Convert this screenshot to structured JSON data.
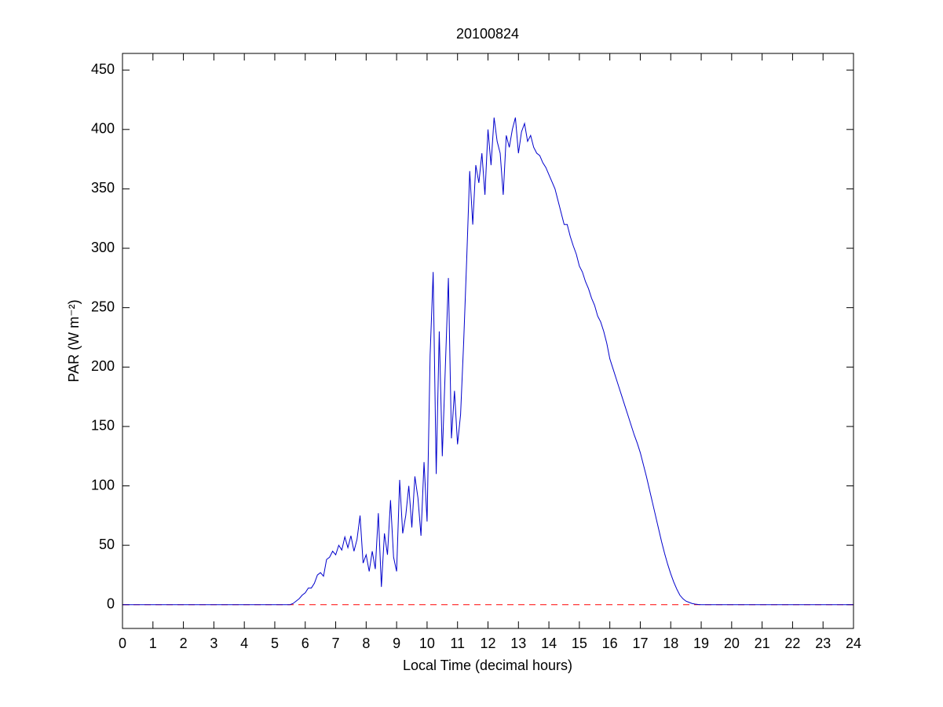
{
  "chart_data": {
    "type": "line",
    "title": "20100824",
    "xlabel": "Local Time (decimal hours)",
    "ylabel": "PAR (W m⁻²)",
    "x": [
      0,
      5.5,
      5.6,
      5.7,
      5.8,
      5.9,
      6.0,
      6.1,
      6.2,
      6.3,
      6.4,
      6.5,
      6.6,
      6.7,
      6.8,
      6.9,
      7.0,
      7.1,
      7.2,
      7.3,
      7.4,
      7.5,
      7.6,
      7.7,
      7.8,
      7.9,
      8.0,
      8.1,
      8.2,
      8.3,
      8.4,
      8.5,
      8.6,
      8.7,
      8.8,
      8.9,
      9.0,
      9.1,
      9.2,
      9.3,
      9.4,
      9.5,
      9.6,
      9.7,
      9.8,
      9.9,
      10.0,
      10.1,
      10.2,
      10.3,
      10.4,
      10.5,
      10.6,
      10.7,
      10.8,
      10.9,
      11.0,
      11.1,
      11.2,
      11.3,
      11.4,
      11.5,
      11.6,
      11.7,
      11.8,
      11.9,
      12.0,
      12.1,
      12.2,
      12.3,
      12.4,
      12.5,
      12.6,
      12.7,
      12.8,
      12.9,
      13.0,
      13.1,
      13.2,
      13.3,
      13.4,
      13.5,
      13.6,
      13.7,
      13.8,
      13.9,
      14.0,
      14.1,
      14.2,
      14.3,
      14.4,
      14.5,
      14.6,
      14.7,
      14.8,
      14.9,
      15.0,
      15.1,
      15.2,
      15.3,
      15.4,
      15.5,
      15.6,
      15.7,
      15.8,
      15.9,
      16.0,
      16.1,
      16.2,
      16.3,
      16.4,
      16.5,
      16.6,
      16.7,
      16.8,
      16.9,
      17.0,
      17.1,
      17.2,
      17.3,
      17.4,
      17.5,
      17.6,
      17.7,
      17.8,
      17.9,
      18.0,
      18.1,
      18.2,
      18.3,
      18.4,
      18.5,
      18.6,
      18.7,
      18.8,
      18.9,
      19.0,
      19.2,
      24
    ],
    "series": [
      {
        "name": "PAR",
        "color": "#0000cc",
        "values": [
          0,
          0,
          1,
          3,
          5,
          8,
          10,
          14,
          14,
          18,
          25,
          27,
          24,
          38,
          40,
          45,
          42,
          50,
          46,
          57,
          48,
          58,
          45,
          55,
          75,
          35,
          42,
          28,
          45,
          30,
          77,
          15,
          60,
          42,
          88,
          40,
          28,
          105,
          60,
          75,
          100,
          65,
          108,
          90,
          58,
          120,
          70,
          210,
          280,
          110,
          230,
          125,
          200,
          275,
          140,
          180,
          135,
          160,
          220,
          290,
          365,
          320,
          370,
          355,
          380,
          345,
          400,
          370,
          410,
          390,
          380,
          345,
          395,
          385,
          400,
          410,
          380,
          398,
          405,
          390,
          395,
          385,
          380,
          378,
          372,
          368,
          362,
          356,
          350,
          340,
          330,
          320,
          320,
          310,
          302,
          295,
          285,
          280,
          272,
          266,
          258,
          252,
          243,
          238,
          230,
          220,
          207,
          199,
          191,
          183,
          175,
          167,
          159,
          151,
          143,
          136,
          128,
          118,
          108,
          97,
          86,
          75,
          64,
          53,
          43,
          34,
          26,
          19,
          13,
          8,
          5,
          3,
          2,
          1,
          0.5,
          0.2,
          0,
          0,
          0
        ]
      }
    ],
    "hline": {
      "value": 0,
      "color": "#ff0000",
      "style": "dashed"
    },
    "xlim": [
      0,
      24
    ],
    "xticks": [
      0,
      1,
      2,
      3,
      4,
      5,
      6,
      7,
      8,
      9,
      10,
      11,
      12,
      13,
      14,
      15,
      16,
      17,
      18,
      19,
      20,
      21,
      22,
      23,
      24
    ],
    "ylim": [
      -20,
      464
    ],
    "yticks": [
      0,
      50,
      100,
      150,
      200,
      250,
      300,
      350,
      400,
      450
    ]
  }
}
